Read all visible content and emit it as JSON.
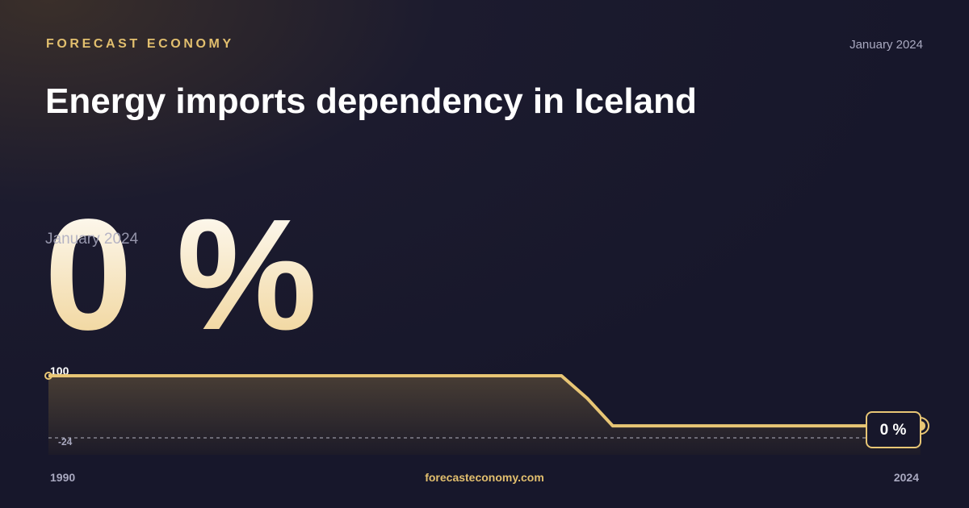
{
  "header": {
    "brand": "FORECAST ECONOMY",
    "date": "January 2024"
  },
  "title": "Energy imports dependency in Iceland",
  "highlight": {
    "date": "January 2024",
    "value": 0,
    "value_label": "0 %"
  },
  "footer": {
    "site": "forecasteconomy.com"
  },
  "chart_data": {
    "type": "line",
    "x": [
      1990,
      1991,
      1992,
      1993,
      1994,
      1995,
      1996,
      1997,
      1998,
      1999,
      2000,
      2001,
      2002,
      2003,
      2004,
      2005,
      2006,
      2007,
      2008,
      2009,
      2010,
      2011,
      2012,
      2013,
      2014,
      2015,
      2016,
      2017,
      2018,
      2019,
      2020,
      2021,
      2022,
      2023,
      2024
    ],
    "series": [
      {
        "color": "#e8c675",
        "values": [
          100,
          100,
          100,
          100,
          100,
          100,
          100,
          100,
          100,
          100,
          100,
          100,
          100,
          100,
          100,
          100,
          100,
          100,
          100,
          100,
          100,
          55,
          0,
          0,
          0,
          0,
          0,
          0,
          0,
          0,
          0,
          0,
          0,
          0,
          0
        ]
      }
    ],
    "xlim": [
      1990,
      2024
    ],
    "xticks": [
      1990,
      2024
    ],
    "ylim": [
      -24,
      100
    ],
    "yticks": [
      -24,
      100
    ],
    "end_label": "0 %"
  }
}
